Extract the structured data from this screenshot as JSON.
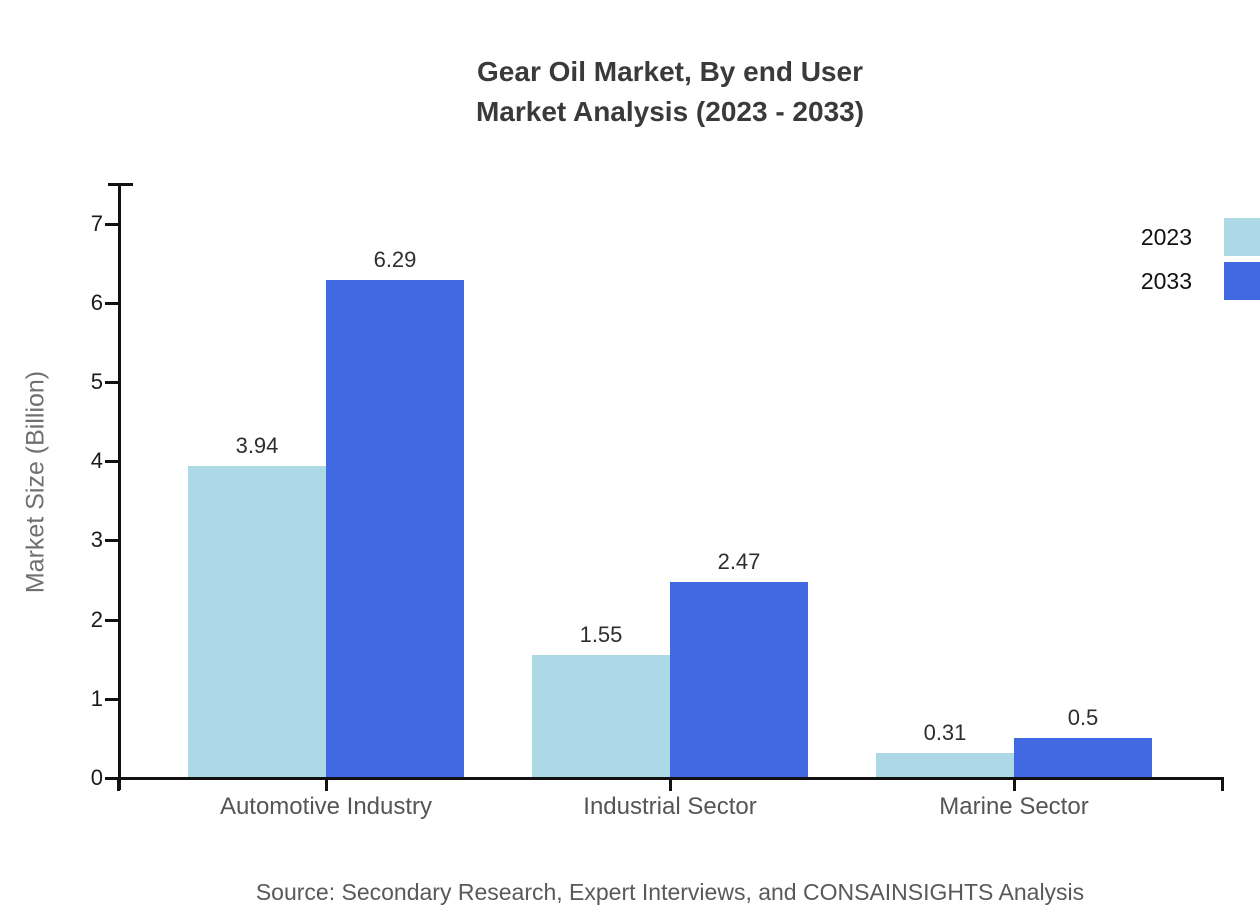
{
  "header": {
    "line1": "Gear Oil Market, By end User",
    "line2": "Market Analysis (2023 - 2033)"
  },
  "footer": {
    "source": "Source: Secondary Research, Expert Interviews, and CONSAINSIGHTS Analysis"
  },
  "chart_data": {
    "type": "bar",
    "title": "Gear Oil Market, By end User Market Analysis (2023 - 2033)",
    "categories": [
      "Automotive Industry",
      "Industrial Sector",
      "Marine Sector"
    ],
    "series": [
      {
        "name": "2023",
        "color": "#add8e6",
        "values": [
          3.94,
          1.55,
          0.31
        ]
      },
      {
        "name": "2033",
        "color": "#4169e1",
        "values": [
          6.29,
          2.47,
          0.5
        ]
      }
    ],
    "xlabel": "",
    "ylabel": "Market Size (Billion)",
    "ylim": [
      0,
      7.5
    ],
    "yticks": [
      0,
      1,
      2,
      3,
      4,
      5,
      6,
      7
    ],
    "grid": false,
    "legend_position": "top-right",
    "value_labels": true,
    "axis_color": "#111111",
    "text_colors": {
      "title": "#3a3a3a",
      "tick": "#1a1a1a",
      "category": "#555555",
      "value": "#2e2e2e",
      "axis_label": "#707070",
      "source": "#595959"
    }
  }
}
